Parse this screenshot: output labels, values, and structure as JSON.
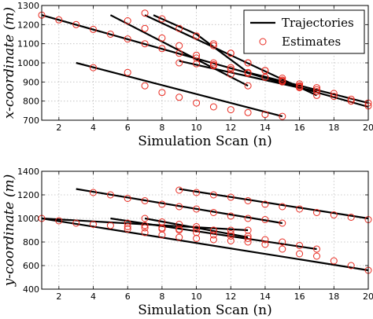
{
  "chart_data": [
    {
      "type": "line",
      "title": "",
      "xlabel": "Simulation Scan (n)",
      "ylabel": "x-coordinate (m)",
      "xlim": [
        1,
        20
      ],
      "ylim": [
        700,
        1300
      ],
      "xticks": [
        2,
        4,
        6,
        8,
        10,
        12,
        14,
        16,
        18,
        20
      ],
      "yticks": [
        700,
        800,
        900,
        1000,
        1100,
        1200,
        1300
      ],
      "grid": true,
      "legend": {
        "position": "top-right",
        "entries": [
          "Trajectories",
          "Estimates"
        ]
      },
      "series": [
        {
          "kind": "trajectory",
          "x": [
            1,
            20
          ],
          "y": [
            1250,
            770
          ]
        },
        {
          "kind": "trajectory",
          "x": [
            3,
            15
          ],
          "y": [
            1000,
            720
          ]
        },
        {
          "kind": "trajectory",
          "x": [
            5,
            13
          ],
          "y": [
            1250,
            880
          ]
        },
        {
          "kind": "trajectory",
          "x": [
            7,
            17
          ],
          "y": [
            1250,
            830
          ]
        },
        {
          "kind": "trajectory",
          "x": [
            7.5,
            10,
            13,
            20
          ],
          "y": [
            1250,
            1150,
            950,
            790
          ]
        },
        {
          "kind": "trajectory",
          "x": [
            9,
            17
          ],
          "y": [
            1010,
            850
          ]
        },
        {
          "kind": "estimates",
          "x": [
            1,
            2,
            3,
            4,
            5,
            6,
            7,
            8,
            9,
            10,
            11,
            12,
            13,
            14,
            15,
            16,
            17,
            18,
            19,
            20
          ],
          "y": [
            1250,
            1225,
            1200,
            1175,
            1150,
            1125,
            1100,
            1075,
            1050,
            1025,
            1000,
            975,
            950,
            925,
            900,
            875,
            850,
            825,
            800,
            775
          ]
        },
        {
          "kind": "estimates",
          "x": [
            4,
            6,
            7,
            8,
            9,
            10,
            11,
            12,
            13,
            14,
            15
          ],
          "y": [
            975,
            950,
            880,
            845,
            820,
            790,
            770,
            755,
            740,
            730,
            720
          ]
        },
        {
          "kind": "estimates",
          "x": [
            6,
            7,
            8,
            9,
            10,
            11,
            12,
            13
          ],
          "y": [
            1220,
            1180,
            1130,
            1090,
            1040,
            990,
            940,
            880
          ]
        },
        {
          "kind": "estimates",
          "x": [
            7,
            8,
            9,
            10,
            11,
            12,
            13,
            14,
            15,
            16,
            17
          ],
          "y": [
            1260,
            1230,
            1180,
            1140,
            1090,
            1050,
            1000,
            960,
            910,
            870,
            830
          ]
        },
        {
          "kind": "estimates",
          "x": [
            10,
            11,
            12,
            13,
            14,
            15,
            16,
            17,
            18,
            19,
            20
          ],
          "y": [
            1140,
            1100,
            1050,
            1000,
            960,
            920,
            880,
            860,
            840,
            810,
            790
          ]
        },
        {
          "kind": "estimates",
          "x": [
            9,
            10,
            11,
            12,
            13,
            14,
            15,
            16,
            17
          ],
          "y": [
            1000,
            995,
            985,
            965,
            945,
            925,
            905,
            890,
            870
          ]
        }
      ]
    },
    {
      "type": "line",
      "title": "",
      "xlabel": "Simulation Scan (n)",
      "ylabel": "y-coordinate (m)",
      "xlim": [
        1,
        20
      ],
      "ylim": [
        400,
        1400
      ],
      "xticks": [
        2,
        4,
        6,
        8,
        10,
        12,
        14,
        16,
        18,
        20
      ],
      "yticks": [
        400,
        600,
        800,
        1000,
        1200,
        1400
      ],
      "grid": true,
      "series": [
        {
          "kind": "trajectory",
          "x": [
            3,
            15
          ],
          "y": [
            1250,
            960
          ]
        },
        {
          "kind": "trajectory",
          "x": [
            9,
            20
          ],
          "y": [
            1250,
            1000
          ]
        },
        {
          "kind": "trajectory",
          "x": [
            1,
            13
          ],
          "y": [
            1000,
            900
          ]
        },
        {
          "kind": "trajectory",
          "x": [
            1,
            20
          ],
          "y": [
            1000,
            560
          ]
        },
        {
          "kind": "trajectory",
          "x": [
            5,
            17
          ],
          "y": [
            1000,
            740
          ]
        },
        {
          "kind": "trajectory",
          "x": [
            7,
            13
          ],
          "y": [
            1000,
            840
          ]
        },
        {
          "kind": "estimates",
          "x": [
            4,
            5,
            6,
            7,
            8,
            9,
            10,
            11,
            12,
            13,
            14,
            15
          ],
          "y": [
            1220,
            1200,
            1170,
            1150,
            1120,
            1100,
            1080,
            1050,
            1020,
            1000,
            990,
            960
          ]
        },
        {
          "kind": "estimates",
          "x": [
            9,
            10,
            11,
            12,
            13,
            14,
            15,
            16,
            17,
            18,
            19,
            20
          ],
          "y": [
            1240,
            1220,
            1200,
            1180,
            1150,
            1120,
            1100,
            1080,
            1050,
            1030,
            1010,
            990
          ]
        },
        {
          "kind": "estimates",
          "x": [
            1,
            2,
            3,
            4,
            5,
            6,
            7,
            8,
            9,
            10,
            11,
            12,
            13
          ],
          "y": [
            1000,
            980,
            960,
            950,
            940,
            930,
            920,
            910,
            910,
            910,
            900,
            900,
            900
          ]
        },
        {
          "kind": "estimates",
          "x": [
            6,
            7,
            8,
            9,
            10,
            11,
            12,
            13,
            14,
            15,
            16,
            17,
            18,
            19,
            20
          ],
          "y": [
            910,
            880,
            860,
            840,
            830,
            820,
            810,
            800,
            780,
            740,
            700,
            680,
            640,
            600,
            560
          ]
        },
        {
          "kind": "estimates",
          "x": [
            6,
            7,
            8,
            9,
            10,
            11,
            12,
            13,
            14,
            15,
            16,
            17
          ],
          "y": [
            960,
            940,
            920,
            900,
            880,
            860,
            850,
            830,
            820,
            800,
            770,
            740
          ]
        },
        {
          "kind": "estimates",
          "x": [
            7,
            8,
            9,
            10,
            11,
            12,
            13
          ],
          "y": [
            1000,
            970,
            950,
            930,
            900,
            870,
            850
          ]
        }
      ]
    }
  ]
}
